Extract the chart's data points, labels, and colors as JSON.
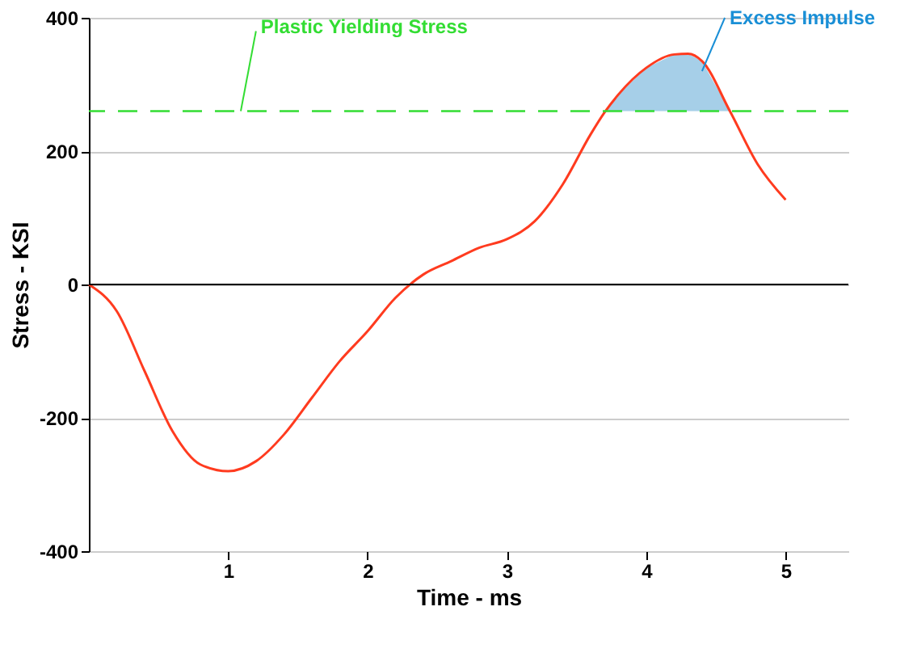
{
  "chart_data": {
    "type": "line",
    "xlabel": "Time - ms",
    "ylabel": "Stress - KSI",
    "xlim": [
      0,
      5.45
    ],
    "xticks": [
      1,
      2,
      3,
      4,
      5
    ],
    "ylim": [
      -400,
      400
    ],
    "yticks": [
      -400,
      -200,
      0,
      200,
      400
    ],
    "grid": "y",
    "series": [
      {
        "color": "#ff3b1f",
        "x": [
          0,
          0.2,
          0.4,
          0.6,
          0.8,
          1.0,
          1.2,
          1.4,
          1.6,
          1.8,
          2.0,
          2.2,
          2.4,
          2.6,
          2.8,
          3.0,
          3.2,
          3.4,
          3.6,
          3.7,
          3.8,
          4.0,
          4.2,
          4.3,
          4.4,
          4.6,
          4.8,
          5.0
        ],
        "values": [
          0,
          -40,
          -130,
          -220,
          -270,
          -280,
          -265,
          -225,
          -170,
          -115,
          -70,
          -20,
          15,
          35,
          55,
          68,
          95,
          150,
          225,
          258,
          285,
          325,
          345,
          346,
          335,
          260,
          180,
          127
        ]
      },
      {
        "type": "area",
        "color": "#a6cfe8",
        "x": [
          3.7,
          3.8,
          4.0,
          4.2,
          4.3,
          4.4,
          4.6
        ],
        "values": [
          258,
          285,
          325,
          345,
          346,
          335,
          260
        ]
      }
    ],
    "ref_lines": [
      {
        "axis": "y",
        "value": 260,
        "label": "Plastic Yielding Stress",
        "color": "#33dd33",
        "line_style": "dashed"
      }
    ],
    "annotations": [
      {
        "text": "Excess Impulse",
        "x": 4.4,
        "y": 320
      }
    ]
  }
}
